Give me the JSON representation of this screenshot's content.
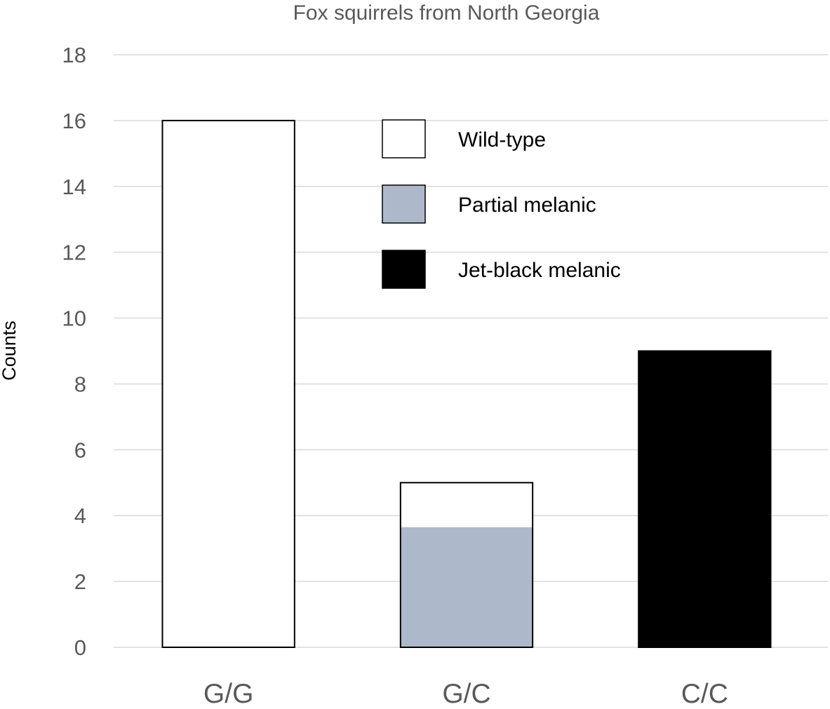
{
  "chart_data": {
    "type": "bar",
    "title": "Fox squirrels from North Georgia",
    "xlabel": "",
    "ylabel": "Counts",
    "ylim": [
      0,
      18
    ],
    "yticks": [
      0,
      2,
      4,
      6,
      8,
      10,
      12,
      14,
      16,
      18
    ],
    "grid": true,
    "legend_position": "top-center",
    "categories": [
      "G/G",
      "G/C",
      "C/C"
    ],
    "stacked": true,
    "series": [
      {
        "name": "Jet-black melanic",
        "color": "#000000",
        "values": [
          0,
          0,
          9
        ]
      },
      {
        "name": "Partial melanic",
        "color": "#adb9ca",
        "values": [
          0,
          3.65,
          0
        ]
      },
      {
        "name": "Wild-type",
        "color": "#ffffff",
        "values": [
          16,
          1.35,
          0
        ]
      }
    ],
    "legend_order": [
      "Wild-type",
      "Partial melanic",
      "Jet-black melanic"
    ]
  }
}
